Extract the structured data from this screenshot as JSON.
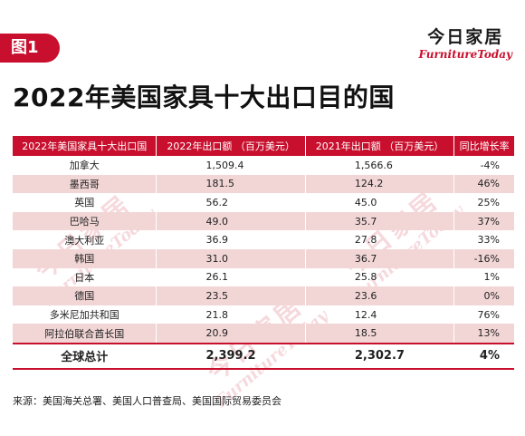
{
  "figure_label": "图1",
  "brand": {
    "cn": "今日家居",
    "en": "FurnitureToday"
  },
  "title": "2022年美国家具十大出口目的国",
  "table": {
    "headers": [
      "2022年美国家具十大出口国",
      "2022年出口额 （百万美元）",
      "2021年出口额 （百万美元）",
      "同比增长率"
    ],
    "rows": [
      [
        "加拿大",
        "1,509.4",
        "1,566.6",
        "-4%"
      ],
      [
        "墨西哥",
        "181.5",
        "124.2",
        "46%"
      ],
      [
        "英国",
        "56.2",
        "45.0",
        "25%"
      ],
      [
        "巴哈马",
        "49.0",
        "35.7",
        "37%"
      ],
      [
        "澳大利亚",
        "36.9",
        "27.8",
        "33%"
      ],
      [
        "韩国",
        "31.0",
        "36.7",
        "-16%"
      ],
      [
        "日本",
        "26.1",
        "25.8",
        "1%"
      ],
      [
        "德国",
        "23.5",
        "23.6",
        "0%"
      ],
      [
        "多米尼加共和国",
        "21.8",
        "12.4",
        "76%"
      ],
      [
        "阿拉伯联合酋长国",
        "20.9",
        "18.5",
        "13%"
      ]
    ],
    "total": [
      "全球总计",
      "2,399.2",
      "2,302.7",
      "4%"
    ]
  },
  "source": "来源：美国海关总署、美国人口普查局、美国国际贸易委员会",
  "colors": {
    "accent": "#c8102e",
    "stripe": "#f2d6d6"
  }
}
